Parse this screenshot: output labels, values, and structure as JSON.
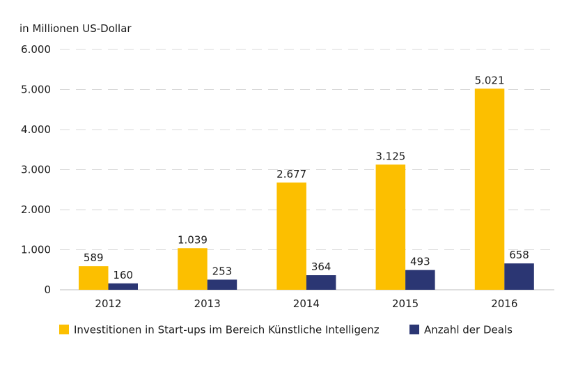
{
  "chart_data": {
    "type": "bar",
    "unit_label": "in Millionen US-Dollar",
    "categories": [
      "2012",
      "2013",
      "2014",
      "2015",
      "2016"
    ],
    "series": [
      {
        "name": "Investitionen in Start-ups im Bereich Künstliche Intelligenz",
        "values": [
          589,
          1039,
          2677,
          3125,
          5021
        ],
        "labels": [
          "589",
          "1.039",
          "2.677",
          "3.125",
          "5.021"
        ],
        "color": "#fcbf00"
      },
      {
        "name": "Anzahl der Deals",
        "values": [
          160,
          253,
          364,
          493,
          658
        ],
        "labels": [
          "160",
          "253",
          "364",
          "493",
          "658"
        ],
        "color": "#2b3673"
      }
    ],
    "y_ticks": [
      {
        "value": 0,
        "label": "0"
      },
      {
        "value": 1000,
        "label": "1.000"
      },
      {
        "value": 2000,
        "label": "2.000"
      },
      {
        "value": 3000,
        "label": "3.000"
      },
      {
        "value": 4000,
        "label": "4.000"
      },
      {
        "value": 5000,
        "label": "5.000"
      },
      {
        "value": 6000,
        "label": "6.000"
      }
    ],
    "ylim": [
      0,
      6000
    ],
    "grid": true,
    "legend_position": "bottom"
  }
}
